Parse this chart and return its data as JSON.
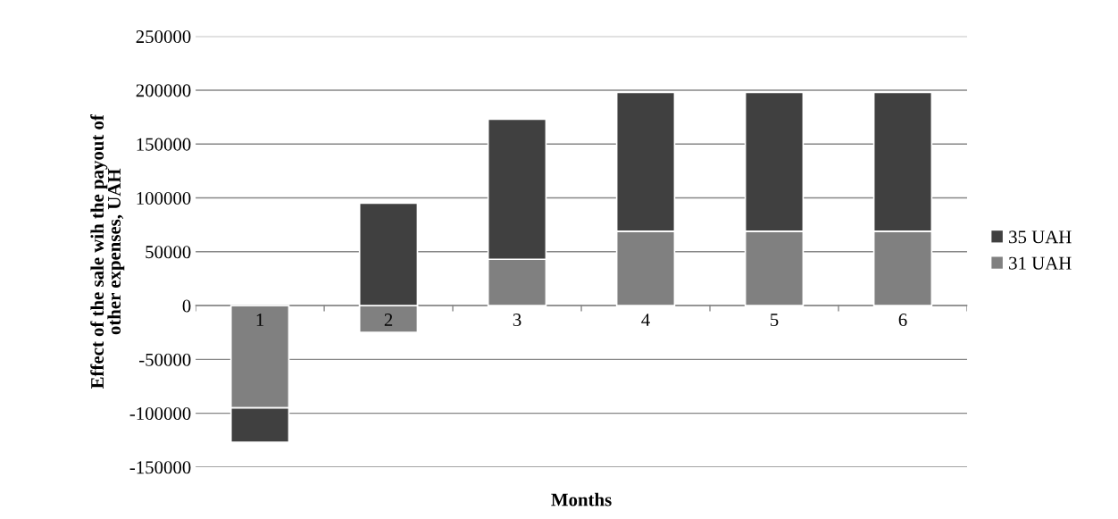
{
  "chart_data": {
    "type": "bar",
    "stacked": true,
    "xlabel": "Months",
    "ylabel": "Effect of the sale wih the payout of\nother expenses, UAH",
    "categories": [
      "1",
      "2",
      "3",
      "4",
      "5",
      "6"
    ],
    "series": [
      {
        "name": "31 UAH",
        "color": "#808080",
        "values": [
          -95000,
          -25000,
          43000,
          69000,
          69000,
          69000
        ]
      },
      {
        "name": "35 UAH",
        "color": "#404040",
        "values": [
          -32000,
          95000,
          130000,
          129000,
          129000,
          129000
        ]
      }
    ],
    "ylim": [
      -150000,
      250000
    ],
    "yticks": [
      -150000,
      -100000,
      -50000,
      0,
      50000,
      100000,
      150000,
      200000,
      250000
    ],
    "grid": "y",
    "legend": "right"
  }
}
